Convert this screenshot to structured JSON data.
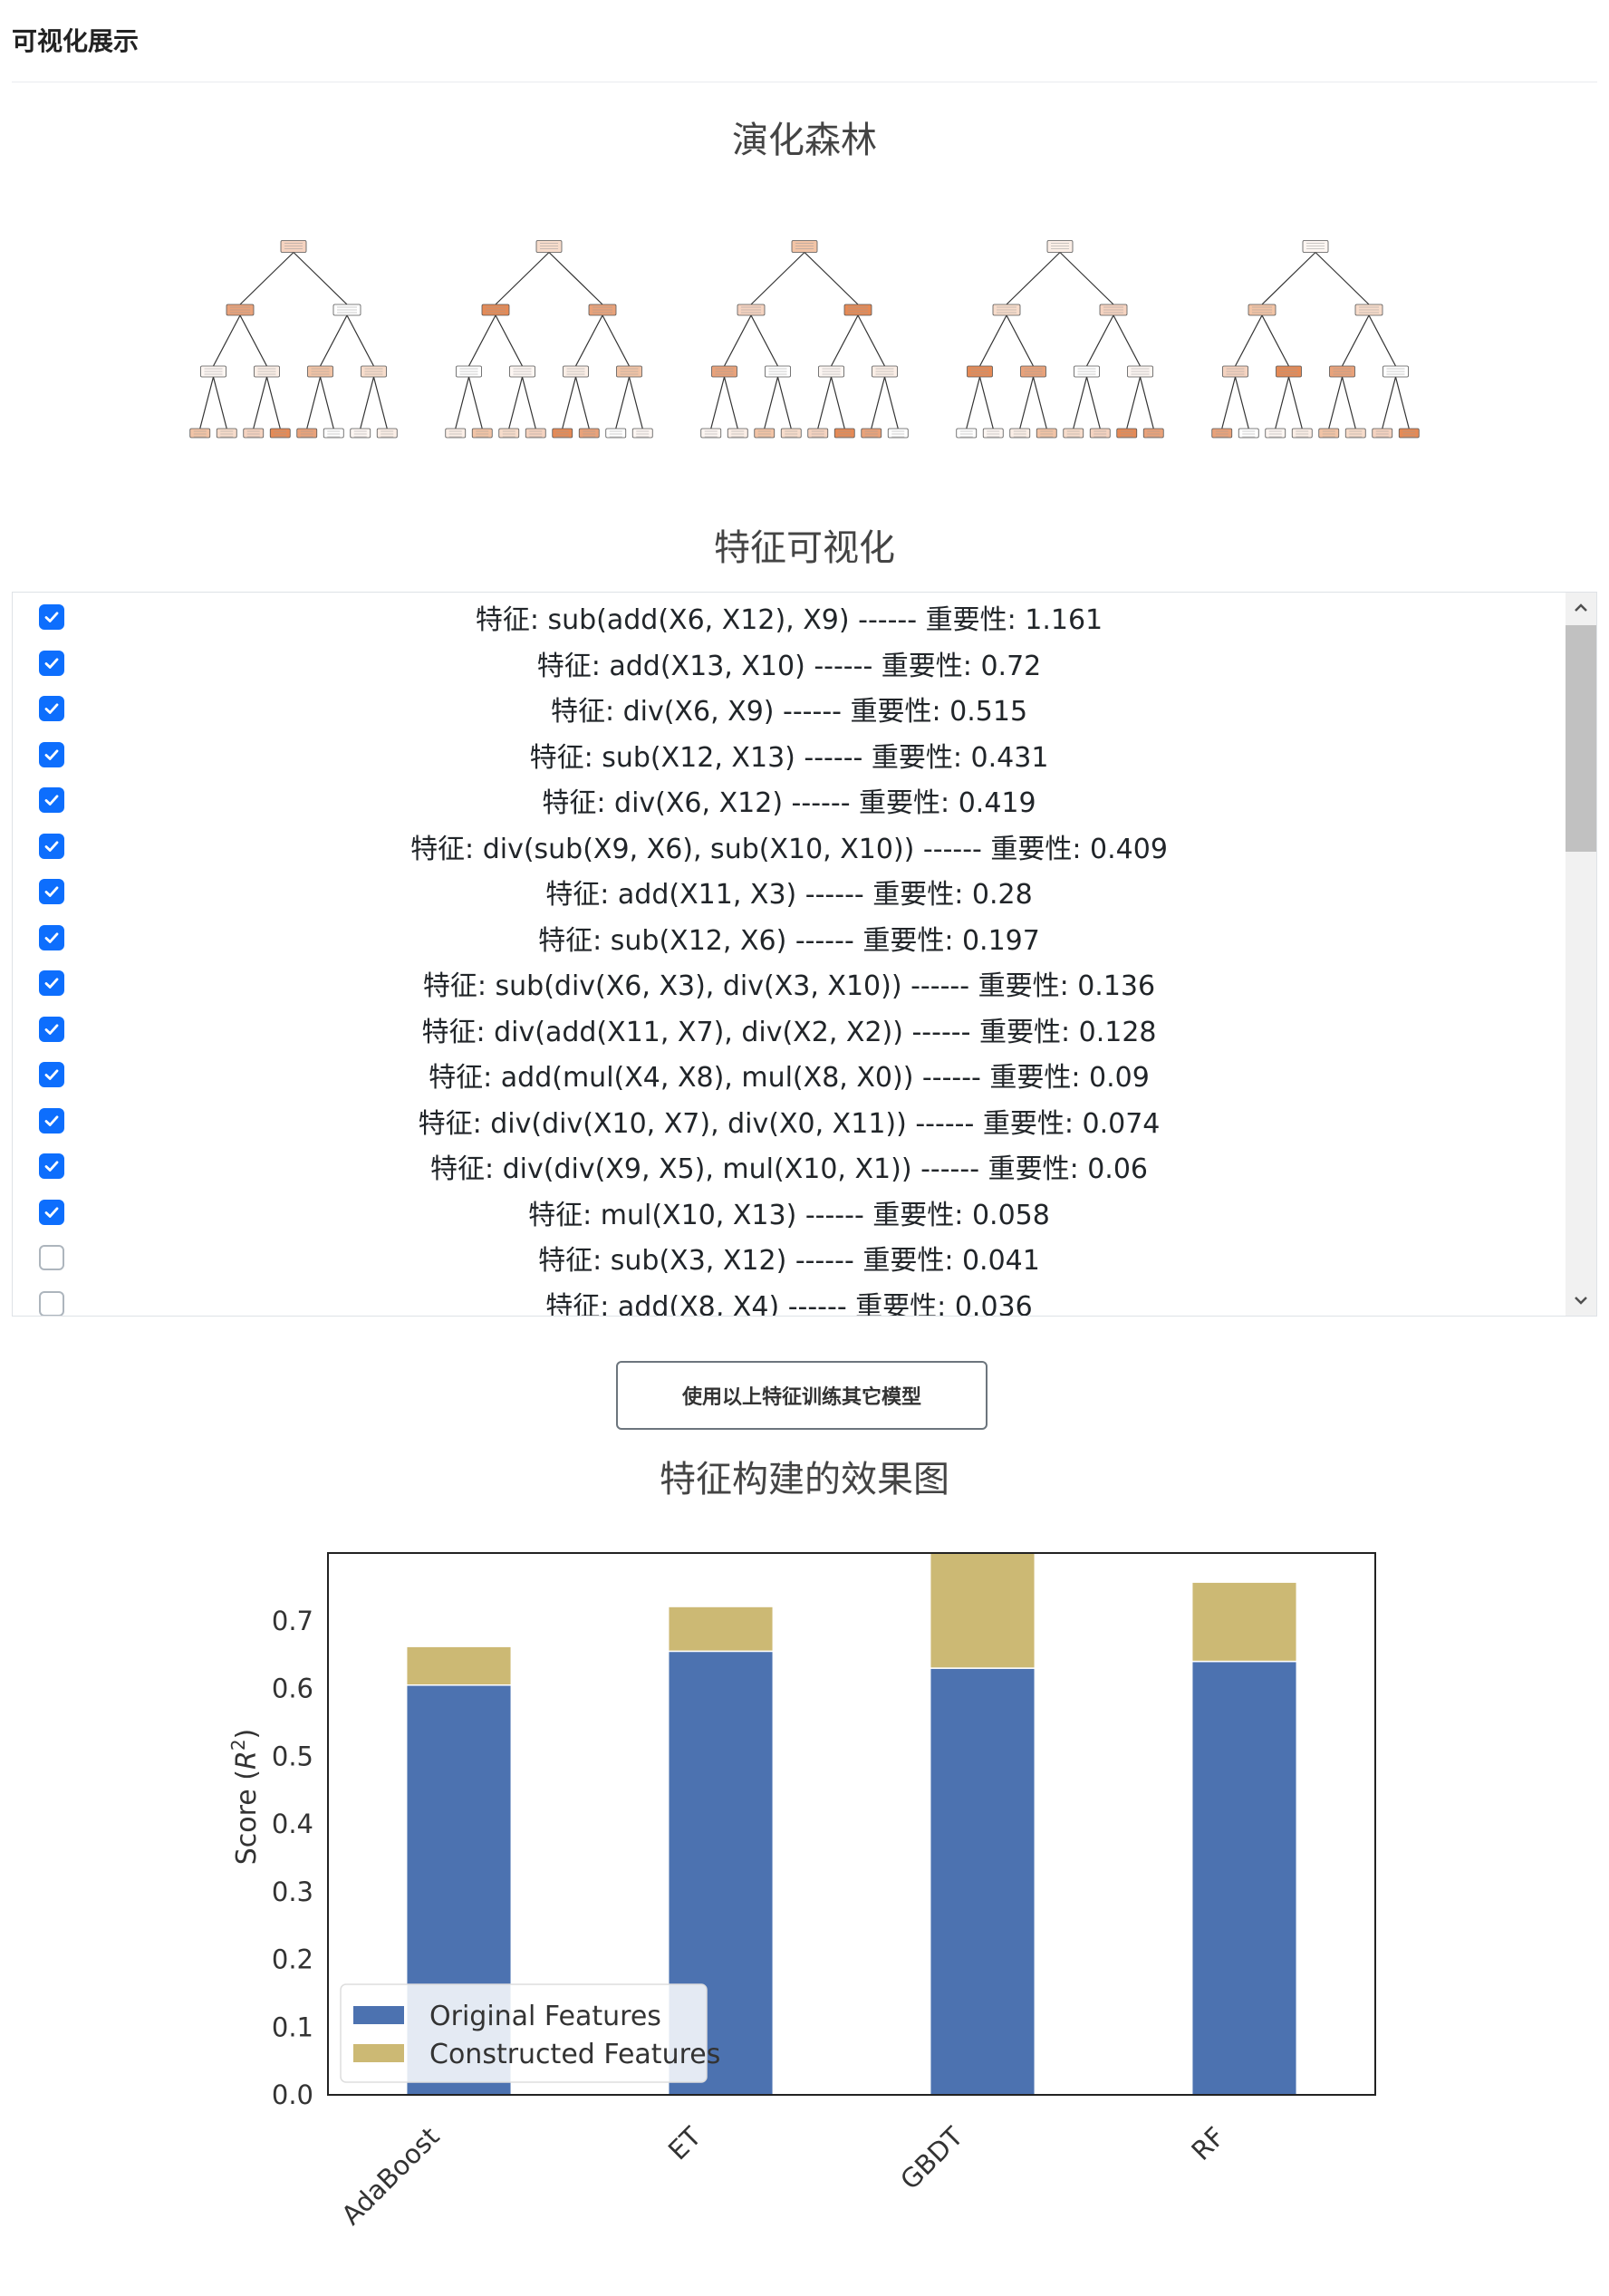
{
  "page": {
    "section_header": "可视化展示",
    "forest_title": "演化森林",
    "feature_title": "特征可视化",
    "chart_title": "特征构建的效果图",
    "train_button_label": "使用以上特征训练其它模型"
  },
  "forest": {
    "tree_count": 5
  },
  "features": [
    {
      "label": "特征: sub(add(X6, X12), X9) ------ 重要性: 1.161",
      "checked": true
    },
    {
      "label": "特征: add(X13, X10) ------ 重要性: 0.72",
      "checked": true
    },
    {
      "label": "特征: div(X6, X9) ------ 重要性: 0.515",
      "checked": true
    },
    {
      "label": "特征: sub(X12, X13) ------ 重要性: 0.431",
      "checked": true
    },
    {
      "label": "特征: div(X6, X12) ------ 重要性: 0.419",
      "checked": true
    },
    {
      "label": "特征: div(sub(X9, X6), sub(X10, X10)) ------ 重要性: 0.409",
      "checked": true
    },
    {
      "label": "特征: add(X11, X3) ------ 重要性: 0.28",
      "checked": true
    },
    {
      "label": "特征: sub(X12, X6) ------ 重要性: 0.197",
      "checked": true
    },
    {
      "label": "特征: sub(div(X6, X3), div(X3, X10)) ------ 重要性: 0.136",
      "checked": true
    },
    {
      "label": "特征: div(add(X11, X7), div(X2, X2)) ------ 重要性: 0.128",
      "checked": true
    },
    {
      "label": "特征: add(mul(X4, X8), mul(X8, X0)) ------ 重要性: 0.09",
      "checked": true
    },
    {
      "label": "特征: div(div(X10, X7), div(X0, X11)) ------ 重要性: 0.074",
      "checked": true
    },
    {
      "label": "特征: div(div(X9, X5), mul(X10, X1)) ------ 重要性: 0.06",
      "checked": true
    },
    {
      "label": "特征: mul(X10, X13) ------ 重要性: 0.058",
      "checked": true
    },
    {
      "label": "特征: sub(X3, X12) ------ 重要性: 0.041",
      "checked": false
    },
    {
      "label": "特征: add(X8, X4) ------ 重要性: 0.036",
      "checked": false
    }
  ],
  "chart_data": {
    "type": "bar",
    "stacked": true,
    "categories": [
      "AdaBoost",
      "ET",
      "GBDT",
      "RF"
    ],
    "series": [
      {
        "name": "Original Features",
        "values": [
          0.605,
          0.655,
          0.63,
          0.64
        ],
        "color": "#4c72b0"
      },
      {
        "name": "Constructed Features",
        "values": [
          0.057,
          0.066,
          0.17,
          0.117
        ],
        "color": "#ccb974"
      }
    ],
    "ylabel": "Score ($R^2$)",
    "ylabel_main": "Score (",
    "ylabel_italic": "R",
    "ylabel_sup": "2",
    "ylabel_close": ")",
    "ylim": [
      0,
      0.8
    ],
    "yticks": [
      "0.0",
      "0.1",
      "0.2",
      "0.3",
      "0.4",
      "0.5",
      "0.6",
      "0.7"
    ],
    "legend_position": "lower-left",
    "grid": false
  }
}
